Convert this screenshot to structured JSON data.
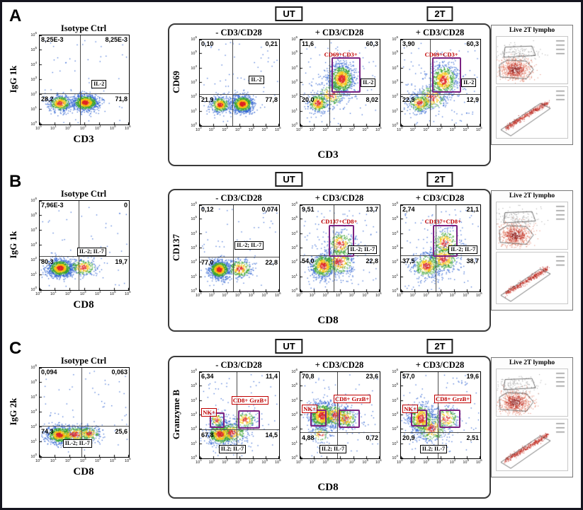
{
  "figure": {
    "panels": [
      {
        "id": "A",
        "headers": {
          "ut": "UT",
          "t2": "2T"
        },
        "group_xlabel": "CD3",
        "group_ylabel": "CD69",
        "iso_index": 0,
        "group_indices": [
          1,
          2,
          3
        ],
        "side_panel": {
          "title": "Live 2T lympho"
        }
      },
      {
        "id": "B",
        "headers": {
          "ut": "UT",
          "t2": "2T"
        },
        "group_xlabel": "CD8",
        "group_ylabel": "CD137",
        "iso_index": 4,
        "group_indices": [
          5,
          6,
          7
        ],
        "side_panel": {
          "title": "Live 2T lympho"
        }
      },
      {
        "id": "C",
        "headers": {
          "ut": "UT",
          "t2": "2T"
        },
        "group_xlabel": "CD8",
        "group_ylabel": "Granzyme B",
        "iso_index": 8,
        "group_indices": [
          9,
          10,
          11
        ],
        "side_panel": {
          "title": "Live 2T lympho"
        }
      }
    ]
  },
  "axes": {
    "scale": "log",
    "tick_base": "10",
    "tick_exponents": [
      0,
      1,
      2,
      3,
      4,
      5,
      6
    ],
    "range_log": [
      0,
      6
    ],
    "grid": false
  },
  "colors": {
    "gate": "#7b2382",
    "gate_label": "#c00000",
    "quadrant_line": "#4d4d4d",
    "border": "#15151f"
  },
  "chart_data": [
    {
      "type": "scatter",
      "panel": "A",
      "slot": "isotype",
      "title": "Isotype Ctrl",
      "xlabel": "CD3",
      "ylabel": "IgG 1k",
      "quadrant_percent": {
        "UL": "8,25E-3",
        "UR": "8,25E-3",
        "LL": "28,2",
        "LR": "71,8"
      },
      "divider_log": {
        "x": 2.7,
        "y": 2.1
      },
      "marker_box": {
        "label": "IL-2",
        "pos": [
          0.58,
          0.5
        ]
      },
      "gates": [],
      "populations": [
        {
          "cx": 1.35,
          "cy": 1.45,
          "sx": 0.4,
          "sy": 0.28,
          "n": 450
        },
        {
          "cx": 3.05,
          "cy": 1.5,
          "sx": 0.45,
          "sy": 0.28,
          "n": 900
        }
      ],
      "noise": 50
    },
    {
      "type": "scatter",
      "panel": "A",
      "slot": "UT - CD3/CD28",
      "title": "- CD3/CD28",
      "xlabel": "CD3",
      "ylabel": "CD69",
      "quadrant_percent": {
        "UL": "0,10",
        "UR": "0,21",
        "LL": "21,9",
        "LR": "77,8"
      },
      "divider_log": {
        "x": 2.45,
        "y": 2.2
      },
      "marker_box": {
        "label": "IL-2",
        "pos": [
          0.62,
          0.42
        ]
      },
      "gates": [],
      "populations": [
        {
          "cx": 1.5,
          "cy": 1.5,
          "sx": 0.38,
          "sy": 0.3,
          "n": 420
        },
        {
          "cx": 3.2,
          "cy": 1.55,
          "sx": 0.42,
          "sy": 0.3,
          "n": 850
        }
      ],
      "noise": 60
    },
    {
      "type": "scatter",
      "panel": "A",
      "slot": "UT + CD3/CD28",
      "title": "+ CD3/CD28",
      "xlabel": "CD3",
      "ylabel": "CD69",
      "quadrant_percent": {
        "UL": "11,6",
        "UR": "60,3",
        "LL": "20,0",
        "LR": "8,02"
      },
      "divider_log": {
        "x": 2.2,
        "y": 2.2
      },
      "marker_box": {
        "label": "IL-2",
        "pos": [
          0.76,
          0.45
        ]
      },
      "gates": [
        {
          "label": "CD69+CD3+",
          "rect_log": [
            2.35,
            2.5,
            4.35,
            4.75
          ],
          "label_pos": [
            0.3,
            0.13
          ],
          "boxed": false
        }
      ],
      "populations": [
        {
          "cx": 3.1,
          "cy": 3.3,
          "sx": 0.5,
          "sy": 0.55,
          "n": 900
        },
        {
          "cx": 1.3,
          "cy": 1.6,
          "sx": 0.4,
          "sy": 0.35,
          "n": 300
        },
        {
          "cx": 2.3,
          "cy": 2.2,
          "sx": 0.55,
          "sy": 0.45,
          "n": 220
        }
      ],
      "noise": 80
    },
    {
      "type": "scatter",
      "panel": "A",
      "slot": "2T + CD3/CD28",
      "title": "+ CD3/CD28",
      "xlabel": "CD3",
      "ylabel": "CD69",
      "quadrant_percent": {
        "UL": "3,90",
        "UR": "60,3",
        "LL": "22,9",
        "LR": "12,9"
      },
      "divider_log": {
        "x": 2.2,
        "y": 2.2
      },
      "marker_box": {
        "label": "IL-2",
        "pos": [
          0.76,
          0.45
        ]
      },
      "gates": [
        {
          "label": "CD69+CD3+",
          "rect_log": [
            2.35,
            2.5,
            4.35,
            4.75
          ],
          "label_pos": [
            0.3,
            0.13
          ],
          "boxed": false
        }
      ],
      "populations": [
        {
          "cx": 3.2,
          "cy": 3.2,
          "sx": 0.55,
          "sy": 0.6,
          "n": 650
        },
        {
          "cx": 1.4,
          "cy": 1.6,
          "sx": 0.45,
          "sy": 0.35,
          "n": 280
        },
        {
          "cx": 2.3,
          "cy": 2.0,
          "sx": 0.6,
          "sy": 0.5,
          "n": 260
        }
      ],
      "noise": 90
    },
    {
      "type": "scatter",
      "panel": "B",
      "slot": "isotype",
      "title": "Isotype Ctrl",
      "xlabel": "CD8",
      "ylabel": "IgG 1k",
      "quadrant_percent": {
        "UL": "7,96E-3",
        "UR": "0",
        "LL": "80,3",
        "LR": "19,7"
      },
      "divider_log": {
        "x": 2.6,
        "y": 2.3
      },
      "marker_box": {
        "label": "IL-2; IL-7",
        "pos": [
          0.42,
          0.52
        ]
      },
      "gates": [],
      "populations": [
        {
          "cx": 1.35,
          "cy": 1.5,
          "sx": 0.42,
          "sy": 0.3,
          "n": 950
        },
        {
          "cx": 2.9,
          "cy": 1.55,
          "sx": 0.5,
          "sy": 0.3,
          "n": 280
        }
      ],
      "noise": 50
    },
    {
      "type": "scatter",
      "panel": "B",
      "slot": "UT - CD3/CD28",
      "title": "- CD3/CD28",
      "xlabel": "CD8",
      "ylabel": "CD137",
      "quadrant_percent": {
        "UL": "0,12",
        "UR": "0,074",
        "LL": "77,0",
        "LR": "22,8"
      },
      "divider_log": {
        "x": 2.5,
        "y": 2.4
      },
      "marker_box": {
        "label": "IL-2; IL-7",
        "pos": [
          0.44,
          0.42
        ]
      },
      "gates": [],
      "populations": [
        {
          "cx": 1.45,
          "cy": 1.55,
          "sx": 0.4,
          "sy": 0.32,
          "n": 850
        },
        {
          "cx": 3.0,
          "cy": 1.6,
          "sx": 0.5,
          "sy": 0.35,
          "n": 300
        }
      ],
      "noise": 60
    },
    {
      "type": "scatter",
      "panel": "B",
      "slot": "UT + CD3/CD28",
      "title": "+ CD3/CD28",
      "xlabel": "CD8",
      "ylabel": "CD137",
      "quadrant_percent": {
        "UL": "9,51",
        "UR": "13,7",
        "LL": "54,0",
        "LR": "22,8"
      },
      "divider_log": {
        "x": 2.5,
        "y": 2.5
      },
      "marker_box": {
        "label": "IL-2; IL-7",
        "pos": [
          0.6,
          0.47
        ]
      },
      "gates": [
        {
          "label": "CD137+CD8+",
          "rect_log": [
            2.15,
            2.6,
            3.85,
            4.65
          ],
          "label_pos": [
            0.26,
            0.15
          ],
          "boxed": false
        }
      ],
      "populations": [
        {
          "cx": 1.7,
          "cy": 1.8,
          "sx": 0.5,
          "sy": 0.45,
          "n": 600
        },
        {
          "cx": 2.9,
          "cy": 2.1,
          "sx": 0.6,
          "sy": 0.5,
          "n": 400
        },
        {
          "cx": 3.0,
          "cy": 3.3,
          "sx": 0.55,
          "sy": 0.5,
          "n": 260
        }
      ],
      "noise": 100
    },
    {
      "type": "scatter",
      "panel": "B",
      "slot": "2T + CD3/CD28",
      "title": "+ CD3/CD28",
      "xlabel": "CD8",
      "ylabel": "CD137",
      "quadrant_percent": {
        "UL": "2,74",
        "UR": "21,1",
        "LL": "37,5",
        "LR": "38,7"
      },
      "divider_log": {
        "x": 2.6,
        "y": 2.5
      },
      "marker_box": {
        "label": "IL-2; IL-7",
        "pos": [
          0.6,
          0.47
        ]
      },
      "gates": [
        {
          "label": "CD137+CD8+",
          "rect_log": [
            2.4,
            2.6,
            4.05,
            4.65
          ],
          "label_pos": [
            0.3,
            0.15
          ],
          "boxed": false
        }
      ],
      "populations": [
        {
          "cx": 1.9,
          "cy": 1.8,
          "sx": 0.55,
          "sy": 0.45,
          "n": 420
        },
        {
          "cx": 3.2,
          "cy": 2.3,
          "sx": 0.6,
          "sy": 0.5,
          "n": 420
        },
        {
          "cx": 3.3,
          "cy": 3.4,
          "sx": 0.55,
          "sy": 0.5,
          "n": 260
        }
      ],
      "noise": 100
    },
    {
      "type": "scatter",
      "panel": "C",
      "slot": "isotype",
      "title": "Isotype Ctrl",
      "xlabel": "CD8",
      "ylabel": "IgG 2k",
      "quadrant_percent": {
        "UL": "0,094",
        "UR": "0,063",
        "LL": "74,3",
        "LR": "25,6"
      },
      "divider_log": {
        "x": 2.8,
        "y": 2.1
      },
      "marker_box": {
        "label": "IL-2; IL-7",
        "pos": [
          0.26,
          0.8
        ]
      },
      "gates": [],
      "populations": [
        {
          "cx": 1.3,
          "cy": 1.5,
          "sx": 0.45,
          "sy": 0.3,
          "n": 700
        },
        {
          "cx": 2.3,
          "cy": 1.55,
          "sx": 0.7,
          "sy": 0.3,
          "n": 450
        },
        {
          "cx": 3.3,
          "cy": 1.6,
          "sx": 0.4,
          "sy": 0.28,
          "n": 200
        }
      ],
      "noise": 60
    },
    {
      "type": "scatter",
      "panel": "C",
      "slot": "UT - CD3/CD28",
      "title": "- CD3/CD28",
      "xlabel": "CD8",
      "ylabel": "Granzyme B",
      "quadrant_percent": {
        "UL": "6,34",
        "UR": "11,4",
        "LL": "67,8",
        "LR": "14,5"
      },
      "divider_log": {
        "x": 2.8,
        "y": 2.0
      },
      "marker_box": {
        "label": "IL2; IL-7",
        "pos": [
          0.24,
          0.84
        ]
      },
      "gates": [
        {
          "label": "NK+",
          "rect_log": [
            0.75,
            2.3,
            1.65,
            3.2
          ],
          "label_pos": [
            0.02,
            0.42
          ],
          "boxed": true
        },
        {
          "label": "CD8+ GrzB+",
          "rect_log": [
            2.9,
            2.25,
            4.35,
            3.35
          ],
          "label_pos": [
            0.4,
            0.28
          ],
          "boxed": true
        }
      ],
      "populations": [
        {
          "cx": 1.5,
          "cy": 1.7,
          "sx": 0.5,
          "sy": 0.4,
          "n": 600
        },
        {
          "cx": 2.4,
          "cy": 1.8,
          "sx": 0.6,
          "sy": 0.4,
          "n": 350
        },
        {
          "cx": 1.25,
          "cy": 2.7,
          "sx": 0.25,
          "sy": 0.3,
          "n": 120
        },
        {
          "cx": 3.4,
          "cy": 2.7,
          "sx": 0.45,
          "sy": 0.35,
          "n": 160
        }
      ],
      "noise": 80
    },
    {
      "type": "scatter",
      "panel": "C",
      "slot": "UT + CD3/CD28",
      "title": "+ CD3/CD28",
      "xlabel": "CD8",
      "ylabel": "Granzyme B",
      "quadrant_percent": {
        "UL": "70,8",
        "UR": "23,6",
        "LL": "4,88",
        "LR": "0,72"
      },
      "divider_log": {
        "x": 2.8,
        "y": 1.8
      },
      "marker_box": {
        "label": "IL2; IL-7",
        "pos": [
          0.24,
          0.84
        ]
      },
      "gates": [
        {
          "label": "NK+",
          "rect_log": [
            0.75,
            2.4,
            1.75,
            3.4
          ],
          "label_pos": [
            0.02,
            0.38
          ],
          "boxed": true
        },
        {
          "label": "CD8+ GrzB+",
          "rect_log": [
            2.9,
            2.3,
            4.3,
            3.4
          ],
          "label_pos": [
            0.42,
            0.26
          ],
          "boxed": true
        }
      ],
      "populations": [
        {
          "cx": 1.6,
          "cy": 3.0,
          "sx": 0.5,
          "sy": 0.5,
          "n": 800
        },
        {
          "cx": 2.6,
          "cy": 3.0,
          "sx": 0.55,
          "sy": 0.45,
          "n": 350
        },
        {
          "cx": 3.4,
          "cy": 2.8,
          "sx": 0.45,
          "sy": 0.4,
          "n": 220
        },
        {
          "cx": 1.5,
          "cy": 1.7,
          "sx": 0.4,
          "sy": 0.3,
          "n": 80
        }
      ],
      "noise": 80
    },
    {
      "type": "scatter",
      "panel": "C",
      "slot": "2T + CD3/CD28",
      "title": "+ CD3/CD28",
      "xlabel": "CD8",
      "ylabel": "Granzyme B",
      "quadrant_percent": {
        "UL": "57,0",
        "UR": "19,6",
        "LL": "20,9",
        "LR": "2,51"
      },
      "divider_log": {
        "x": 2.8,
        "y": 1.8
      },
      "marker_box": {
        "label": "IL2; IL-7",
        "pos": [
          0.24,
          0.84
        ]
      },
      "gates": [
        {
          "label": "NK+",
          "rect_log": [
            0.75,
            2.4,
            1.75,
            3.4
          ],
          "label_pos": [
            0.02,
            0.38
          ],
          "boxed": true
        },
        {
          "label": "CD8+ GrzB+",
          "rect_log": [
            2.9,
            2.3,
            4.3,
            3.4
          ],
          "label_pos": [
            0.42,
            0.26
          ],
          "boxed": true
        }
      ],
      "populations": [
        {
          "cx": 1.5,
          "cy": 2.8,
          "sx": 0.5,
          "sy": 0.55,
          "n": 600
        },
        {
          "cx": 2.3,
          "cy": 2.1,
          "sx": 0.6,
          "sy": 0.5,
          "n": 300
        },
        {
          "cx": 3.4,
          "cy": 2.8,
          "sx": 0.5,
          "sy": 0.45,
          "n": 200
        }
      ],
      "noise": 90
    }
  ]
}
